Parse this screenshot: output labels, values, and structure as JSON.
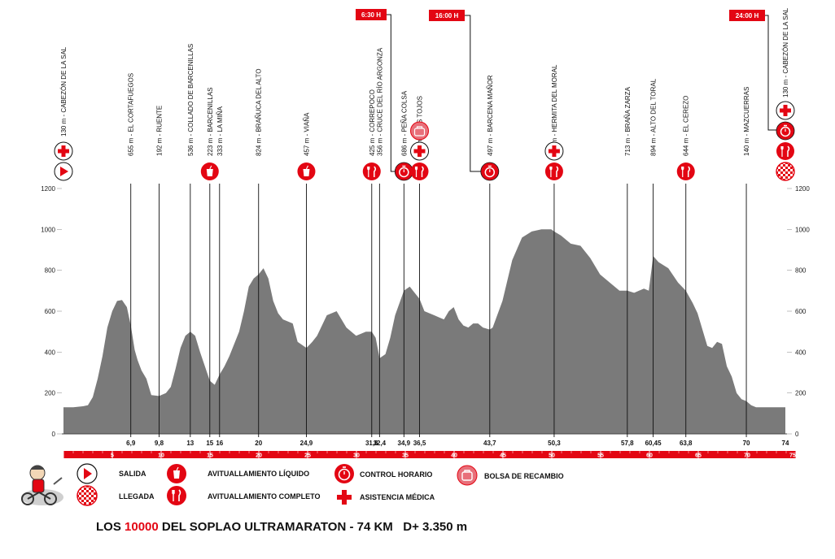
{
  "title": {
    "pre": "LOS ",
    "highlight": "10000",
    "post": " DEL SOPLAO ULTRAMARATON - 74 KM   D+ 3.350 m"
  },
  "colors": {
    "profile": "#7a7a7a",
    "accent": "#e30613",
    "text": "#111111"
  },
  "time_boxes": [
    {
      "label": "6:30 H",
      "at_km": 34.9
    },
    {
      "label": "16:00 H",
      "at_km": 43.7
    },
    {
      "label": "24:00 H",
      "at_km": 74
    }
  ],
  "legend": {
    "salida": "SALIDA",
    "llegada": "LLEGADA",
    "avit_liquido": "AVITUALLAMIENTO LÍQUIDO",
    "avit_completo": "AVITUALLAMIENTO COMPLETO",
    "control_horario": "CONTROL HORARIO",
    "asistencia_medica": "ASISTENCIA MÉDICA",
    "bolsa_recambio": "BOLSA DE RECAMBIO"
  },
  "chart_data": {
    "type": "area",
    "title": "LOS 10000 DEL SOPLAO ULTRAMARATON - 74 KM D+ 3.350 m",
    "xlabel": "",
    "ylabel": "",
    "xlim": [
      0,
      75
    ],
    "ylim": [
      0,
      1200
    ],
    "y_ticks": [
      0,
      200,
      400,
      600,
      800,
      1000,
      1200
    ],
    "km_scale_ticks": [
      5,
      10,
      15,
      20,
      25,
      30,
      35,
      40,
      45,
      50,
      55,
      60,
      65,
      70,
      75
    ],
    "x_tick_labels": [
      "6,9",
      "9,8",
      "13",
      "15",
      "16",
      "20",
      "24,9",
      "31,6",
      "32,4",
      "34,9",
      "36,5",
      "43,7",
      "50,3",
      "57,8",
      "60,45",
      "63,8",
      "70",
      "74"
    ],
    "profile": {
      "x": [
        0,
        1,
        2,
        2.5,
        3,
        3.5,
        4,
        4.5,
        5,
        5.5,
        6,
        6.5,
        6.9,
        7.3,
        7.6,
        8,
        8.5,
        9,
        9.8,
        10.5,
        11,
        11.5,
        12,
        12.5,
        13,
        13.5,
        14,
        14.5,
        15,
        15.5,
        16,
        16.5,
        17,
        18,
        18.5,
        19,
        19.5,
        20,
        20.5,
        21,
        21.5,
        22,
        22.5,
        23,
        23.5,
        24,
        24.9,
        25.5,
        26,
        27,
        28,
        29,
        30,
        31,
        31.6,
        32,
        32.4,
        33,
        33.5,
        34,
        34.9,
        35.5,
        36.5,
        37,
        37.5,
        38,
        38.5,
        39,
        39.5,
        40,
        40.5,
        41,
        41.5,
        42,
        42.5,
        43,
        43.7,
        44,
        45,
        46,
        47,
        48,
        49,
        50,
        50.3,
        51,
        52,
        53,
        54,
        55,
        56,
        56.5,
        57,
        57.8,
        58.5,
        59,
        59.5,
        60,
        60.45,
        61,
        62,
        63,
        63.8,
        64.5,
        65,
        65.5,
        66,
        66.5,
        67,
        67.5,
        68,
        68.5,
        69,
        69.5,
        70,
        70.5,
        71,
        72,
        73,
        74
      ],
      "y": [
        130,
        130,
        135,
        140,
        180,
        270,
        380,
        520,
        600,
        650,
        655,
        620,
        530,
        410,
        360,
        310,
        270,
        190,
        185,
        200,
        230,
        320,
        420,
        480,
        500,
        480,
        400,
        330,
        260,
        240,
        290,
        330,
        380,
        500,
        600,
        720,
        760,
        780,
        810,
        760,
        650,
        590,
        560,
        550,
        540,
        450,
        420,
        450,
        480,
        580,
        600,
        520,
        480,
        500,
        500,
        470,
        370,
        390,
        470,
        580,
        700,
        720,
        660,
        600,
        590,
        580,
        570,
        560,
        600,
        620,
        560,
        530,
        520,
        540,
        540,
        520,
        510,
        520,
        650,
        850,
        960,
        990,
        1000,
        1000,
        990,
        970,
        930,
        920,
        860,
        780,
        740,
        720,
        700,
        700,
        690,
        700,
        710,
        700,
        870,
        840,
        810,
        740,
        700,
        640,
        590,
        510,
        430,
        420,
        450,
        440,
        330,
        280,
        200,
        170,
        160,
        140,
        130,
        130,
        130,
        130
      ]
    },
    "waypoints": [
      {
        "km": 0,
        "label": "130 m - CABEZÓN DE LA SAL",
        "icons": [
          "medical",
          "start"
        ]
      },
      {
        "km": 6.9,
        "label": "655 m - EL CORTAFUEGOS",
        "icons": []
      },
      {
        "km": 9.8,
        "label": "192 m - RUENTE",
        "icons": []
      },
      {
        "km": 13,
        "label": "536 m - COLLADO DE BARCENILLAS",
        "icons": []
      },
      {
        "km": 15,
        "label": "223 m - BARCENILLAS",
        "icons": [
          "liquid"
        ]
      },
      {
        "km": 16,
        "label": "333 m - LA MIÑA",
        "icons": []
      },
      {
        "km": 20,
        "label": "824 m - BRAÑUCA DEL ALTO",
        "icons": []
      },
      {
        "km": 24.9,
        "label": "457 m - VIAÑA",
        "icons": [
          "liquid"
        ]
      },
      {
        "km": 31.6,
        "label": "425 m - CORREPOCO",
        "icons": [
          "food"
        ]
      },
      {
        "km": 32.4,
        "label": "356 m - CRUCE DEL RÍO ARGONZA",
        "icons": []
      },
      {
        "km": 34.9,
        "label": "686 m - PEÑA COLSA",
        "icons": [
          "control"
        ]
      },
      {
        "km": 36.5,
        "label": "644 m - LOS TOJOS",
        "icons": [
          "bag",
          "medical",
          "food"
        ]
      },
      {
        "km": 43.7,
        "label": "497 m - BARCENA MAÑOR",
        "icons": [
          "control"
        ]
      },
      {
        "km": 50.3,
        "label": "989 m - HERMITA DEL MORAL",
        "icons": [
          "medical",
          "food"
        ]
      },
      {
        "km": 57.8,
        "label": "713 m - BRAÑA ZARZA",
        "icons": []
      },
      {
        "km": 60.45,
        "label": "894 m - ALTO DEL TORAL",
        "icons": []
      },
      {
        "km": 63.8,
        "label": "644 m - EL CEREZO",
        "icons": [
          "food"
        ]
      },
      {
        "km": 70,
        "label": "140 m - MAZCUERRAS",
        "icons": []
      },
      {
        "km": 74,
        "label": "130 m - CABEZÓN DE LA SAL",
        "icons": [
          "medical",
          "control",
          "food",
          "finish"
        ]
      }
    ]
  }
}
